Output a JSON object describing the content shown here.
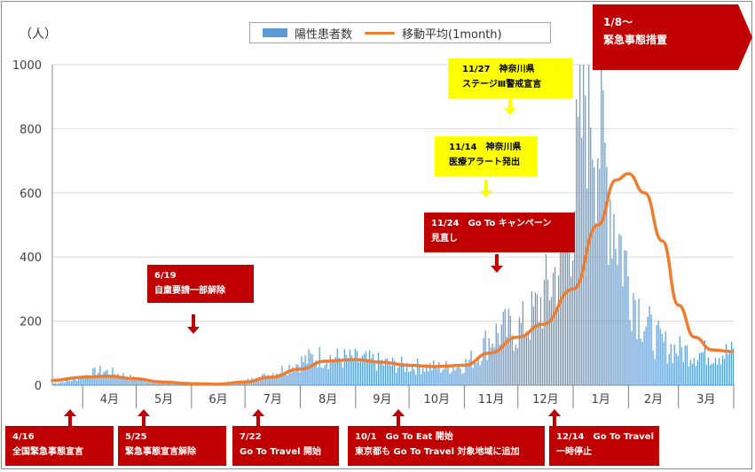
{
  "chart_data": {
    "type": "bar+line",
    "y_unit": "（人）",
    "ylim": [
      0,
      1000
    ],
    "yticks": [
      0,
      200,
      400,
      600,
      800,
      1000
    ],
    "grid": true,
    "legend_position": "top-center",
    "months": [
      "4月",
      "5月",
      "6月",
      "7月",
      "8月",
      "9月",
      "10月",
      "11月",
      "12月",
      "1月",
      "2月",
      "3月"
    ],
    "series": [
      {
        "name": "陽性患者数",
        "kind": "bar",
        "color": "#5b9bd5",
        "points": [
          [
            "2020-03-15",
            5
          ],
          [
            "2020-03-25",
            15
          ],
          [
            "2020-04-05",
            35
          ],
          [
            "2020-04-12",
            45
          ],
          [
            "2020-04-20",
            35
          ],
          [
            "2020-04-30",
            20
          ],
          [
            "2020-05-10",
            12
          ],
          [
            "2020-05-20",
            8
          ],
          [
            "2020-05-31",
            4
          ],
          [
            "2020-06-10",
            2
          ],
          [
            "2020-06-20",
            5
          ],
          [
            "2020-06-30",
            12
          ],
          [
            "2020-07-10",
            25
          ],
          [
            "2020-07-20",
            45
          ],
          [
            "2020-07-31",
            70
          ],
          [
            "2020-08-10",
            90
          ],
          [
            "2020-08-20",
            85
          ],
          [
            "2020-08-31",
            80
          ],
          [
            "2020-09-10",
            75
          ],
          [
            "2020-09-20",
            65
          ],
          [
            "2020-09-30",
            60
          ],
          [
            "2020-10-10",
            58
          ],
          [
            "2020-10-20",
            55
          ],
          [
            "2020-10-31",
            62
          ],
          [
            "2020-11-07",
            90
          ],
          [
            "2020-11-14",
            140
          ],
          [
            "2020-11-21",
            170
          ],
          [
            "2020-11-30",
            170
          ],
          [
            "2020-12-07",
            200
          ],
          [
            "2020-12-14",
            260
          ],
          [
            "2020-12-21",
            340
          ],
          [
            "2020-12-28",
            450
          ],
          [
            "2021-01-04",
            700
          ],
          [
            "2021-01-08",
            990
          ],
          [
            "2021-01-12",
            900
          ],
          [
            "2021-01-18",
            700
          ],
          [
            "2021-01-25",
            500
          ],
          [
            "2021-02-01",
            330
          ],
          [
            "2021-02-08",
            220
          ],
          [
            "2021-02-15",
            150
          ],
          [
            "2021-02-22",
            120
          ],
          [
            "2021-03-01",
            110
          ],
          [
            "2021-03-10",
            100
          ]
        ]
      },
      {
        "name": "移動平均(1month)",
        "kind": "line",
        "color": "#ed7d31",
        "points": [
          [
            "2020-03-15",
            15
          ],
          [
            "2020-04-01",
            25
          ],
          [
            "2020-04-15",
            28
          ],
          [
            "2020-05-01",
            20
          ],
          [
            "2020-05-15",
            10
          ],
          [
            "2020-06-01",
            5
          ],
          [
            "2020-06-15",
            3
          ],
          [
            "2020-07-01",
            10
          ],
          [
            "2020-07-15",
            25
          ],
          [
            "2020-08-01",
            50
          ],
          [
            "2020-08-15",
            75
          ],
          [
            "2020-09-01",
            80
          ],
          [
            "2020-09-15",
            72
          ],
          [
            "2020-10-01",
            62
          ],
          [
            "2020-10-15",
            58
          ],
          [
            "2020-11-01",
            62
          ],
          [
            "2020-11-15",
            100
          ],
          [
            "2020-12-01",
            150
          ],
          [
            "2020-12-15",
            190
          ],
          [
            "2021-01-01",
            300
          ],
          [
            "2021-01-15",
            500
          ],
          [
            "2021-01-25",
            640
          ],
          [
            "2021-02-01",
            660
          ],
          [
            "2021-02-10",
            600
          ],
          [
            "2021-02-20",
            450
          ],
          [
            "2021-03-01",
            250
          ],
          [
            "2021-03-10",
            150
          ],
          [
            "2021-03-20",
            110
          ],
          [
            "2021-03-31",
            105
          ]
        ]
      }
    ],
    "annotations": [
      {
        "lines": [
          "6/19",
          "自粛要請一部解除"
        ],
        "style": "red"
      },
      {
        "lines": [
          "11/27　神奈川県",
          "ステージⅢ警戒宣言"
        ],
        "style": "yellow"
      },
      {
        "lines": [
          "11/14　神奈川県",
          "医療アラート発出"
        ],
        "style": "yellow"
      },
      {
        "lines": [
          "11/24　Go To キャンペーン",
          "見直し"
        ],
        "style": "red"
      },
      {
        "lines": [
          "1/8〜",
          "緊急事態措置"
        ],
        "style": "red"
      },
      {
        "lines": [
          "4/16",
          "全国緊急事態宣言"
        ],
        "style": "red"
      },
      {
        "lines": [
          "5/25",
          "緊急事態宣言解除"
        ],
        "style": "red"
      },
      {
        "lines": [
          "7/22",
          "Go To Travel 開始"
        ],
        "style": "red"
      },
      {
        "lines": [
          "10/1　Go To Eat 開始",
          "東京都も Go To Travel 対象地域に追加"
        ],
        "style": "red"
      },
      {
        "lines": [
          "12/14　Go To Travel",
          "一時停止"
        ],
        "style": "red"
      }
    ]
  }
}
